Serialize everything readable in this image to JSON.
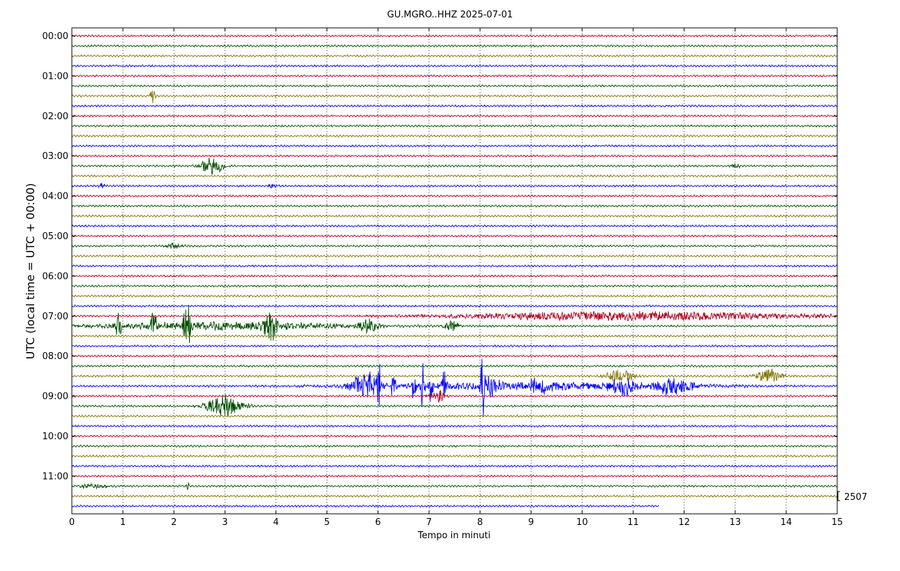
{
  "chart_data": {
    "type": "line",
    "title": "GU.MGRO..HHZ 2025-07-01",
    "xlabel": "Tempo in minuti",
    "ylabel": "UTC (local time = UTC + 00:00)",
    "xlim": [
      0,
      15
    ],
    "x_ticks": [
      "0",
      "1",
      "2",
      "3",
      "4",
      "5",
      "6",
      "7",
      "8",
      "9",
      "10",
      "11",
      "12",
      "13",
      "14",
      "15"
    ],
    "y_ticks": [
      "00:00",
      "01:00",
      "02:00",
      "03:00",
      "04:00",
      "05:00",
      "06:00",
      "07:00",
      "08:00",
      "09:00",
      "10:00",
      "11:00"
    ],
    "trace_interval_minutes": 15,
    "trace_count": 48,
    "trace_colors": [
      "#b0001f",
      "#004d00",
      "#807300",
      "#0000ff"
    ],
    "last_trace_end_minute": 11.5,
    "scale_label": "2507",
    "grid": "dotted-vertical",
    "events": [
      {
        "trace": 6,
        "center": 1.58,
        "amp": 1.4,
        "width": 0.05
      },
      {
        "trace": 13,
        "center": 2.75,
        "amp": 1.8,
        "width": 0.22
      },
      {
        "trace": 13,
        "center": 13.0,
        "amp": 0.5,
        "width": 0.1
      },
      {
        "trace": 15,
        "center": 0.6,
        "amp": 0.6,
        "width": 0.06
      },
      {
        "trace": 15,
        "center": 3.95,
        "amp": 0.5,
        "width": 0.1
      },
      {
        "trace": 21,
        "center": 2.0,
        "amp": 0.6,
        "width": 0.15
      },
      {
        "trace": 28,
        "center": 11.0,
        "amp": 0.9,
        "width": 3.5
      },
      {
        "trace": 29,
        "center": 0.9,
        "amp": 2.8,
        "width": 0.06
      },
      {
        "trace": 29,
        "center": 1.6,
        "amp": 3.0,
        "width": 0.06
      },
      {
        "trace": 29,
        "center": 2.25,
        "amp": 3.0,
        "width": 0.08
      },
      {
        "trace": 29,
        "center": 2.3,
        "amp": 5.5,
        "width": 0.02
      },
      {
        "trace": 29,
        "center": 3.9,
        "amp": 3.5,
        "width": 0.12
      },
      {
        "trace": 29,
        "center": 5.8,
        "amp": 1.5,
        "width": 0.2
      },
      {
        "trace": 29,
        "center": 7.45,
        "amp": 1.2,
        "width": 0.15
      },
      {
        "trace": 29,
        "center": 3.0,
        "amp": 0.8,
        "width": 2.5
      },
      {
        "trace": 34,
        "center": 10.75,
        "amp": 1.5,
        "width": 0.25
      },
      {
        "trace": 34,
        "center": 13.65,
        "amp": 1.5,
        "width": 0.25
      },
      {
        "trace": 35,
        "center": 5.75,
        "amp": 2.5,
        "width": 0.3
      },
      {
        "trace": 35,
        "center": 5.85,
        "amp": 4.0,
        "width": 0.05
      },
      {
        "trace": 35,
        "center": 6.02,
        "amp": 5.0,
        "width": 0.04
      },
      {
        "trace": 35,
        "center": 6.3,
        "amp": 2.2,
        "width": 0.05
      },
      {
        "trace": 35,
        "center": 6.7,
        "amp": 3.0,
        "width": 0.04
      },
      {
        "trace": 35,
        "center": 6.88,
        "amp": 5.5,
        "width": 0.04
      },
      {
        "trace": 35,
        "center": 7.02,
        "amp": 6.0,
        "width": 0.04
      },
      {
        "trace": 35,
        "center": 7.3,
        "amp": 5.0,
        "width": 0.04
      },
      {
        "trace": 35,
        "center": 8.05,
        "amp": 6.5,
        "width": 0.05
      },
      {
        "trace": 35,
        "center": 8.2,
        "amp": 2.0,
        "width": 0.15
      },
      {
        "trace": 35,
        "center": 9.2,
        "amp": 1.3,
        "width": 0.3
      },
      {
        "trace": 35,
        "center": 10.8,
        "amp": 1.6,
        "width": 0.3
      },
      {
        "trace": 35,
        "center": 11.8,
        "amp": 1.8,
        "width": 0.4
      },
      {
        "trace": 35,
        "center": 9.0,
        "amp": 0.7,
        "width": 3.5
      },
      {
        "trace": 36,
        "center": 7.15,
        "amp": 1.5,
        "width": 0.15
      },
      {
        "trace": 37,
        "center": 3.0,
        "amp": 2.2,
        "width": 0.35
      },
      {
        "trace": 45,
        "center": 2.28,
        "amp": 1.0,
        "width": 0.03
      },
      {
        "trace": 45,
        "center": 0.4,
        "amp": 0.4,
        "width": 0.3
      }
    ]
  }
}
